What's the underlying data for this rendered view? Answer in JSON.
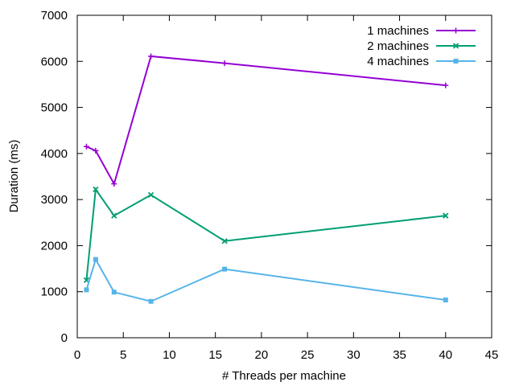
{
  "chart_data": {
    "type": "line",
    "title": "",
    "xlabel": "# Threads per machine",
    "ylabel": "Duration (ms)",
    "xlim": [
      0,
      45
    ],
    "ylim": [
      0,
      7000
    ],
    "xticks": [
      0,
      5,
      10,
      15,
      20,
      25,
      30,
      35,
      40,
      45
    ],
    "yticks": [
      0,
      1000,
      2000,
      3000,
      4000,
      5000,
      6000,
      7000
    ],
    "grid": false,
    "legend_position": "top-right",
    "x": [
      1,
      2,
      4,
      8,
      16,
      40
    ],
    "series": [
      {
        "name": "1 machines",
        "color": "#9400d3",
        "marker": "plus",
        "values": [
          4150,
          4060,
          3340,
          6110,
          5960,
          5480
        ]
      },
      {
        "name": "2 machines",
        "color": "#009e73",
        "marker": "cross",
        "values": [
          1250,
          3220,
          2650,
          3100,
          2100,
          2650
        ]
      },
      {
        "name": "4 machines",
        "color": "#56b4e9",
        "marker": "square",
        "values": [
          1040,
          1700,
          990,
          790,
          1490,
          820
        ]
      }
    ]
  }
}
